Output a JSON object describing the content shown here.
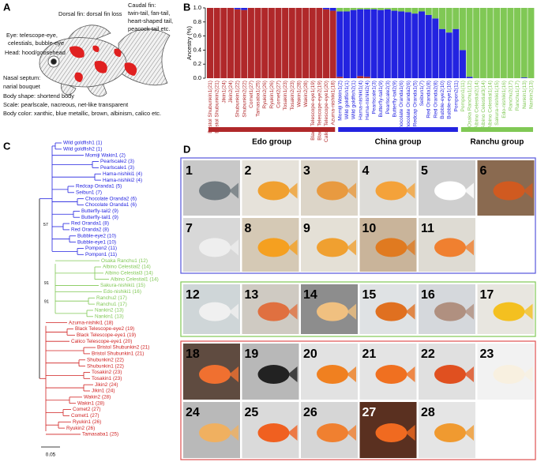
{
  "panel_letters": [
    "A",
    "B",
    "C",
    "D"
  ],
  "fish_annotations": [
    "Dorsal fin: dorsal fin loss",
    "Caudal fin:",
    "twin-tail, fan-tail,",
    "heart-shaped tail,",
    "peacock-tail etc.",
    "Eye: telescope-eye,",
    "celestials, bubble-eye",
    "Head: hood/goosehead",
    "Nasal septum:",
    "narial bouquet",
    "Body shape: shortend body",
    "Scale: pearlscale, nacreous, net-like transparent",
    "Body color: xanthic, blue metallic, brown, albinism, calico etc."
  ],
  "chart_data": {
    "type": "bar",
    "stacked": true,
    "y_label": "Ancestry (%)",
    "categories": [
      "Bristol Shubunkin1(21)",
      "Bristol Shubunkin2(21)",
      "Jikin1(24)",
      "Jikin2(24)",
      "Shubunkin1(22)",
      "Shubunkin2(22)",
      "Comet1(27)",
      "Tamasaba1(25)",
      "Ryukin2(26)",
      "Ryukin1(26)",
      "Comet2(27)",
      "Tosakin1(23)",
      "Tosakin2(23)",
      "Wakin1(28)",
      "Wakin2(28)",
      "Black Telescope-eye1(19)",
      "Black Telescope-eye2(19)",
      "Calico Telescope-eye1(20)",
      "Azuma-nishiki1(18)",
      "Momiji Wakin1(2)",
      "Wild goldfish1(1)",
      "Wild goldfish2(1)",
      "Hama-nishiki1(4)",
      "Hama-nishiki2(4)",
      "Pearlscale1(3)",
      "Butterfly-tail1(9)",
      "Pearlscale2(3)",
      "Butterfly-tail2(9)",
      "Chocolate Oranda1(6)",
      "Chocolate Oranda2(6)",
      "Redcap Oranda1(5)",
      "Seibun1(7)",
      "Red Oranda1(8)",
      "Red Oranda2(8)",
      "Bubble-eye2(10)",
      "Bubble-eye1(10)",
      "Pompon2(11)",
      "Pompon1(11)",
      "Osaka Ranchu1(12)",
      "Albino Celestial2(14)",
      "Albino Celestial3(14)",
      "Albino Celestial1(14)",
      "Sakura-nishiki1(15)",
      "Edo-nishiki1(16)",
      "Ranchu2(17)",
      "Ranchu1(17)",
      "Nankin1(13)",
      "Nankin2(13)"
    ],
    "series": [
      {
        "color": "#b0282a",
        "values": [
          1,
          1,
          1,
          1,
          0.98,
          0.97,
          1,
          1,
          1,
          1,
          1,
          1,
          1,
          1,
          1,
          1,
          1,
          0.98,
          0.96,
          0.02,
          0,
          0,
          0.03,
          0.02,
          0,
          0,
          0,
          0,
          0,
          0,
          0,
          0,
          0,
          0,
          0,
          0,
          0,
          0,
          0,
          0,
          0,
          0,
          0,
          0,
          0,
          0,
          0,
          0
        ]
      },
      {
        "color": "#2323e0",
        "values": [
          0,
          0,
          0,
          0,
          0.02,
          0.03,
          0,
          0,
          0,
          0,
          0,
          0,
          0,
          0,
          0,
          0,
          0,
          0.02,
          0.04,
          0.93,
          0.95,
          0.97,
          0.95,
          0.96,
          0.98,
          0.97,
          0.98,
          0.96,
          0.95,
          0.94,
          0.92,
          0.95,
          0.9,
          0.85,
          0.7,
          0.65,
          0.7,
          0.4,
          0.02,
          0,
          0,
          0,
          0,
          0,
          0,
          0,
          0.01,
          0
        ]
      },
      {
        "color": "#80c855",
        "values": [
          0,
          0,
          0,
          0,
          0,
          0,
          0,
          0,
          0,
          0,
          0,
          0,
          0,
          0,
          0,
          0,
          0,
          0,
          0,
          0.05,
          0.05,
          0.03,
          0.02,
          0.02,
          0.02,
          0.03,
          0.02,
          0.04,
          0.05,
          0.06,
          0.08,
          0.05,
          0.1,
          0.15,
          0.3,
          0.35,
          0.3,
          0.6,
          0.98,
          1,
          1,
          1,
          1,
          1,
          1,
          1,
          0.99,
          1
        ]
      }
    ],
    "group_labels": [
      "Edo group",
      "China group",
      "Ranchu group"
    ],
    "ylim": [
      0,
      1
    ],
    "yticks": [
      {
        "value": 0,
        "label": "0.0"
      },
      0.2,
      0.4,
      0.6,
      0.8,
      {
        "value": 1,
        "label": "1.0"
      }
    ]
  },
  "tree": {
    "leaves": [
      {
        "label": "Wild goldfish1 (1)",
        "color": "#2323e0"
      },
      {
        "label": "Wild goldfish2 (1)",
        "color": "#2323e0"
      },
      {
        "label": "Momiji Wakin1 (2)",
        "color": "#2323e0"
      },
      {
        "label": "Pearlscale2 (3)",
        "color": "#2323e0"
      },
      {
        "label": "Pearlscale1 (3)",
        "color": "#2323e0"
      },
      {
        "label": "Hama-nishiki1 (4)",
        "color": "#2323e0"
      },
      {
        "label": "Hama-nishiki2 (4)",
        "color": "#2323e0"
      },
      {
        "label": "Redcap Oranda1 (5)",
        "color": "#2323e0"
      },
      {
        "label": "Seibun1 (7)",
        "color": "#2323e0"
      },
      {
        "label": "Chocolate Oranda2 (6)",
        "color": "#2323e0"
      },
      {
        "label": "Chocolate Oranda1 (6)",
        "color": "#2323e0"
      },
      {
        "label": "Butterfly-tail2 (9)",
        "color": "#2323e0"
      },
      {
        "label": "Butterfly-tail1 (9)",
        "color": "#2323e0"
      },
      {
        "label": "Red Oranda1 (8)",
        "color": "#2323e0"
      },
      {
        "label": "Red Oranda2 (8)",
        "color": "#2323e0"
      },
      {
        "label": "Bubble-eye2 (10)",
        "color": "#2323e0"
      },
      {
        "label": "Bubble-eye1 (10)",
        "color": "#2323e0"
      },
      {
        "label": "Pompon2 (11)",
        "color": "#2323e0"
      },
      {
        "label": "Pompon1 (11)",
        "color": "#2323e0"
      },
      {
        "label": "Osaka Ranchu1 (12)",
        "color": "#80c855"
      },
      {
        "label": "Albino Celestial2 (14)",
        "color": "#80c855"
      },
      {
        "label": "Albino Celestial3 (14)",
        "color": "#80c855"
      },
      {
        "label": "Albino Celestial1 (14)",
        "color": "#80c855"
      },
      {
        "label": "Sakura-nishiki1 (15)",
        "color": "#80c855"
      },
      {
        "label": "Edo-nishiki1 (16)",
        "color": "#80c855"
      },
      {
        "label": "Ranchu2 (17)",
        "color": "#80c855"
      },
      {
        "label": "Ranchu1 (17)",
        "color": "#80c855"
      },
      {
        "label": "Nankin2 (13)",
        "color": "#80c855"
      },
      {
        "label": "Nankin1 (13)",
        "color": "#80c855"
      },
      {
        "label": "Azuma-nishiki1 (18)",
        "color": "#d02020"
      },
      {
        "label": "Black Telescope-eye2 (19)",
        "color": "#d02020"
      },
      {
        "label": "Black Telescope-eye1 (19)",
        "color": "#d02020"
      },
      {
        "label": "Calico Telescope-eye1 (20)",
        "color": "#d02020"
      },
      {
        "label": "Bristol Shubunkin2 (21)",
        "color": "#d02020"
      },
      {
        "label": "Bristol Shubunkin1 (21)",
        "color": "#d02020"
      },
      {
        "label": "Shubunkin2 (22)",
        "color": "#d02020"
      },
      {
        "label": "Shubunkin1 (22)",
        "color": "#d02020"
      },
      {
        "label": "Tosakin2 (23)",
        "color": "#d02020"
      },
      {
        "label": "Tosakin1 (23)",
        "color": "#d02020"
      },
      {
        "label": "Jikin2 (24)",
        "color": "#d02020"
      },
      {
        "label": "Jikin1 (24)",
        "color": "#d02020"
      },
      {
        "label": "Wakin2 (28)",
        "color": "#d02020"
      },
      {
        "label": "Wakin1 (28)",
        "color": "#d02020"
      },
      {
        "label": "Comet2 (27)",
        "color": "#d02020"
      },
      {
        "label": "Comet1 (27)",
        "color": "#d02020"
      },
      {
        "label": "Ryukin1 (26)",
        "color": "#d02020"
      },
      {
        "label": "Ryukin2 (26)",
        "color": "#d02020"
      },
      {
        "label": "Tamasaba1 (25)",
        "color": "#d02020"
      }
    ],
    "bootstrap": [
      "57",
      "91",
      "91"
    ],
    "scale": "0.05"
  },
  "photos": {
    "labels": [
      "1",
      "2",
      "3",
      "4",
      "5",
      "6",
      "7",
      "8",
      "9",
      "10",
      "11",
      "12",
      "13",
      "14",
      "15",
      "16",
      "17",
      "18",
      "19",
      "20",
      "21",
      "22",
      "23",
      "24",
      "25",
      "26",
      "27",
      "28"
    ]
  }
}
